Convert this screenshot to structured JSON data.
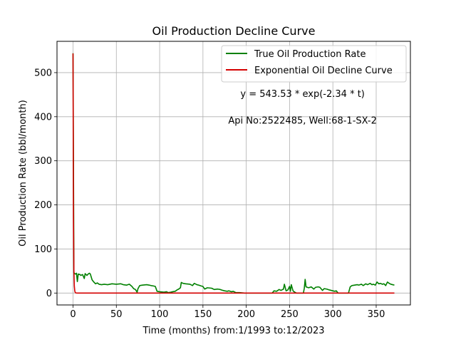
{
  "chart_data": {
    "type": "line",
    "title": "Oil Production Decline Curve",
    "xlabel": "Time (months) from:1/1993 to:12/2023",
    "ylabel": "Oil Production Rate (bbl/month)",
    "xlim": [
      -18.5,
      389.5
    ],
    "ylim": [
      -27,
      571
    ],
    "xticks": [
      0,
      50,
      100,
      150,
      200,
      250,
      300,
      350
    ],
    "yticks": [
      0,
      100,
      200,
      300,
      400,
      500
    ],
    "grid": true,
    "legend_position": "top-right",
    "annotations": [
      {
        "text": "y = 543.53 * exp(-2.34 * t)",
        "x": 265,
        "y": 452
      },
      {
        "text": "Api No:2522485, Well:68-1-SX-2",
        "x": 265,
        "y": 392
      }
    ],
    "series": [
      {
        "name": "True Oil Production Rate",
        "color": "#008000",
        "points": [
          [
            0,
            544
          ],
          [
            1,
            46
          ],
          [
            2,
            44
          ],
          [
            3,
            43
          ],
          [
            4,
            45
          ],
          [
            5,
            26
          ],
          [
            6,
            43
          ],
          [
            8,
            42
          ],
          [
            9,
            40
          ],
          [
            11,
            42
          ],
          [
            13,
            33
          ],
          [
            14,
            44
          ],
          [
            16,
            40
          ],
          [
            18,
            44
          ],
          [
            19,
            45
          ],
          [
            20,
            43
          ],
          [
            22,
            30
          ],
          [
            24,
            25
          ],
          [
            26,
            21
          ],
          [
            28,
            23
          ],
          [
            30,
            20
          ],
          [
            33,
            19
          ],
          [
            36,
            20
          ],
          [
            40,
            19
          ],
          [
            45,
            21
          ],
          [
            50,
            20
          ],
          [
            55,
            21
          ],
          [
            58,
            19
          ],
          [
            62,
            18
          ],
          [
            65,
            20
          ],
          [
            68,
            15
          ],
          [
            70,
            10
          ],
          [
            72,
            8
          ],
          [
            74,
            2
          ],
          [
            75,
            10
          ],
          [
            77,
            17
          ],
          [
            80,
            18
          ],
          [
            85,
            19
          ],
          [
            88,
            18
          ],
          [
            90,
            17
          ],
          [
            93,
            16
          ],
          [
            95,
            15
          ],
          [
            97,
            4
          ],
          [
            100,
            3
          ],
          [
            105,
            2
          ],
          [
            108,
            3
          ],
          [
            110,
            1
          ],
          [
            113,
            2
          ],
          [
            115,
            3
          ],
          [
            118,
            4
          ],
          [
            120,
            7
          ],
          [
            122,
            9
          ],
          [
            124,
            12
          ],
          [
            125,
            24
          ],
          [
            127,
            22
          ],
          [
            130,
            21
          ],
          [
            135,
            20
          ],
          [
            138,
            17
          ],
          [
            140,
            22
          ],
          [
            143,
            19
          ],
          [
            145,
            18
          ],
          [
            148,
            16
          ],
          [
            150,
            15
          ],
          [
            152,
            9
          ],
          [
            155,
            12
          ],
          [
            160,
            11
          ],
          [
            163,
            8
          ],
          [
            167,
            9
          ],
          [
            170,
            8
          ],
          [
            173,
            6
          ],
          [
            175,
            5
          ],
          [
            178,
            4
          ],
          [
            180,
            5
          ],
          [
            183,
            3
          ],
          [
            185,
            4
          ],
          [
            188,
            1
          ],
          [
            192,
            1
          ],
          [
            198,
            0
          ],
          [
            205,
            0
          ],
          [
            215,
            0
          ],
          [
            225,
            0
          ],
          [
            230,
            0
          ],
          [
            232,
            5
          ],
          [
            235,
            4
          ],
          [
            238,
            8
          ],
          [
            240,
            6
          ],
          [
            243,
            9
          ],
          [
            244,
            20
          ],
          [
            246,
            5
          ],
          [
            248,
            7
          ],
          [
            250,
            15
          ],
          [
            251,
            4
          ],
          [
            252,
            19
          ],
          [
            254,
            5
          ],
          [
            256,
            2
          ],
          [
            258,
            0
          ],
          [
            262,
            0
          ],
          [
            266,
            0
          ],
          [
            267,
            11
          ],
          [
            268,
            31
          ],
          [
            269,
            14
          ],
          [
            272,
            12
          ],
          [
            275,
            14
          ],
          [
            278,
            9
          ],
          [
            280,
            13
          ],
          [
            283,
            14
          ],
          [
            285,
            13
          ],
          [
            288,
            6
          ],
          [
            290,
            10
          ],
          [
            293,
            9
          ],
          [
            296,
            7
          ],
          [
            298,
            6
          ],
          [
            300,
            5
          ],
          [
            302,
            4
          ],
          [
            304,
            5
          ],
          [
            306,
            0
          ],
          [
            310,
            0
          ],
          [
            315,
            0
          ],
          [
            318,
            0
          ],
          [
            320,
            14
          ],
          [
            322,
            17
          ],
          [
            325,
            18
          ],
          [
            328,
            19
          ],
          [
            330,
            18
          ],
          [
            333,
            20
          ],
          [
            335,
            17
          ],
          [
            338,
            21
          ],
          [
            340,
            19
          ],
          [
            343,
            22
          ],
          [
            345,
            19
          ],
          [
            347,
            20
          ],
          [
            349,
            18
          ],
          [
            351,
            25
          ],
          [
            353,
            21
          ],
          [
            355,
            22
          ],
          [
            357,
            20
          ],
          [
            359,
            21
          ],
          [
            361,
            17
          ],
          [
            363,
            25
          ],
          [
            365,
            22
          ],
          [
            367,
            20
          ],
          [
            369,
            19
          ],
          [
            371,
            18
          ]
        ]
      },
      {
        "name": "Exponential Oil Decline Curve",
        "color": "#d40000",
        "points": [
          [
            0,
            543.53
          ],
          [
            0.5,
            168.6
          ],
          [
            1,
            52.3
          ],
          [
            1.5,
            16.2
          ],
          [
            2,
            5.0
          ],
          [
            2.5,
            1.6
          ],
          [
            3,
            0.5
          ],
          [
            4,
            0.05
          ],
          [
            5,
            0
          ],
          [
            50,
            0
          ],
          [
            100,
            0
          ],
          [
            150,
            0
          ],
          [
            200,
            0
          ],
          [
            250,
            0
          ],
          [
            300,
            0
          ],
          [
            350,
            0
          ],
          [
            371,
            0
          ]
        ]
      }
    ]
  }
}
